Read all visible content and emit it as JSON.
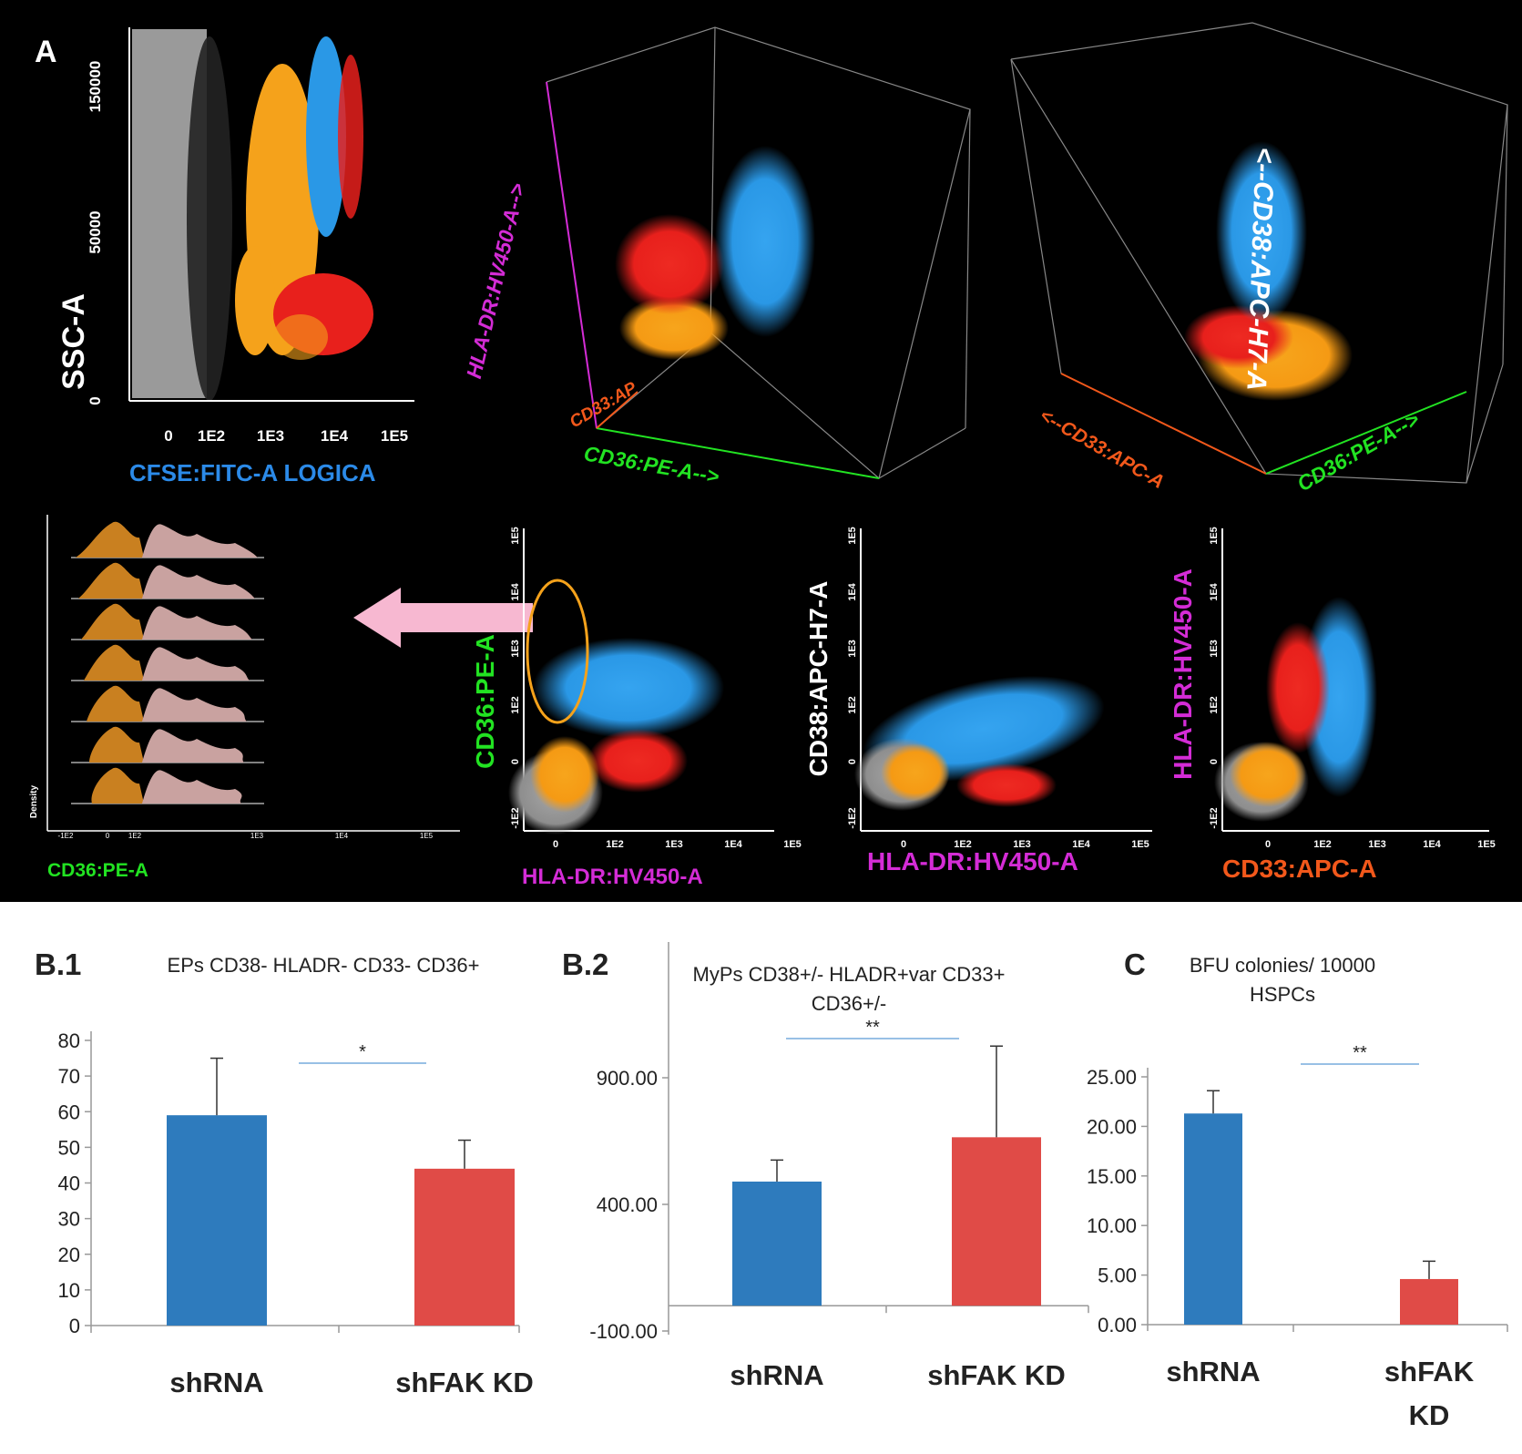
{
  "panel_a": {
    "label": "A",
    "ssc_plot": {
      "ylabel": "SSC-A",
      "xlabel": "CFSE:FITC-A LOGICA",
      "yticks": [
        "150000",
        "50000",
        "0"
      ],
      "xticks": [
        "0",
        "1E2",
        "1E3",
        "1E4",
        "1E5"
      ]
    },
    "plot3d_left": {
      "axis_vertical": "HLA-DR:HV450-A-->",
      "axis_depth": "CD33:AP",
      "axis_horizontal": "CD36:PE-A-->"
    },
    "plot3d_right": {
      "axis_vertical": "<--CD38:APC-H7-A",
      "axis_left": "<--CD33:APC-A",
      "axis_right": "CD36:PE-A-->"
    },
    "histogram": {
      "ylabel": "Density",
      "xlabel": "CD36:PE-A",
      "xticks": [
        "-1E2",
        "0",
        "1E2",
        "1E3",
        "1E4",
        "1E5"
      ],
      "row_count": 7
    },
    "scatter1": {
      "ylabel": "CD36:PE-A",
      "xlabel": "HLA-DR:HV450-A"
    },
    "scatter2": {
      "ylabel": "CD38:APC-H7-A",
      "xlabel": "HLA-DR:HV450-A"
    },
    "scatter3": {
      "ylabel": "HLA-DR:HV450-A",
      "xlabel": "CD33:APC-A"
    },
    "scatter_xticks": [
      "0",
      "1E2",
      "1E3",
      "1E4",
      "1E5"
    ],
    "scatter_yticks": [
      "-1E2",
      "0",
      "1E2",
      "1E3",
      "1E4",
      "1E5"
    ],
    "colors": {
      "background": "#000000",
      "gray": "#9a9a9a",
      "orange": "#f5a21b",
      "red": "#e8201c",
      "blue": "#2a98e6",
      "magenta": "#d42cd6",
      "green": "#22e322",
      "cfse_blue": "#2b8ae8",
      "cd33_orange": "#f2581b",
      "pink_arrow": "#f7b8d1"
    }
  },
  "chart_data": [
    {
      "panel_label": "B.1",
      "type": "bar",
      "title": "EPs CD38- HLADR- CD33- CD36+",
      "categories": [
        "shRNA",
        "shFAK KD"
      ],
      "values": [
        59,
        44
      ],
      "errors": [
        16,
        8
      ],
      "colors": [
        "#2e7bbd",
        "#e04b47"
      ],
      "ylim": [
        0,
        80
      ],
      "yticks": [
        "0",
        "10",
        "20",
        "30",
        "40",
        "50",
        "60",
        "70",
        "80"
      ],
      "significance": "*"
    },
    {
      "panel_label": "B.2",
      "type": "bar",
      "title": "MyPs CD38+/- HLADR+var  CD33+",
      "title_line2": "CD36+/-",
      "categories": [
        "shRNA",
        "shFAK KD"
      ],
      "values": [
        490,
        665
      ],
      "errors": [
        85,
        360
      ],
      "colors": [
        "#2e7bbd",
        "#e04b47"
      ],
      "ylim": [
        -100,
        1400
      ],
      "yticks": [
        "900.00",
        "400.00",
        "-100.00"
      ],
      "significance": "**"
    },
    {
      "panel_label": "C",
      "type": "bar",
      "title": "BFU colonies/ 10000",
      "title_line2": "HSPCs",
      "categories": [
        "shRNA",
        "shFAK KD"
      ],
      "category_lines": [
        [
          "shRNA"
        ],
        [
          "shFAK",
          "KD"
        ]
      ],
      "values": [
        21.3,
        4.6
      ],
      "errors": [
        2.3,
        1.8
      ],
      "colors": [
        "#2e7bbd",
        "#e04b47"
      ],
      "ylim": [
        0,
        25
      ],
      "yticks": [
        "0.00",
        "5.00",
        "10.00",
        "15.00",
        "20.00",
        "25.00"
      ],
      "significance": "**"
    }
  ]
}
